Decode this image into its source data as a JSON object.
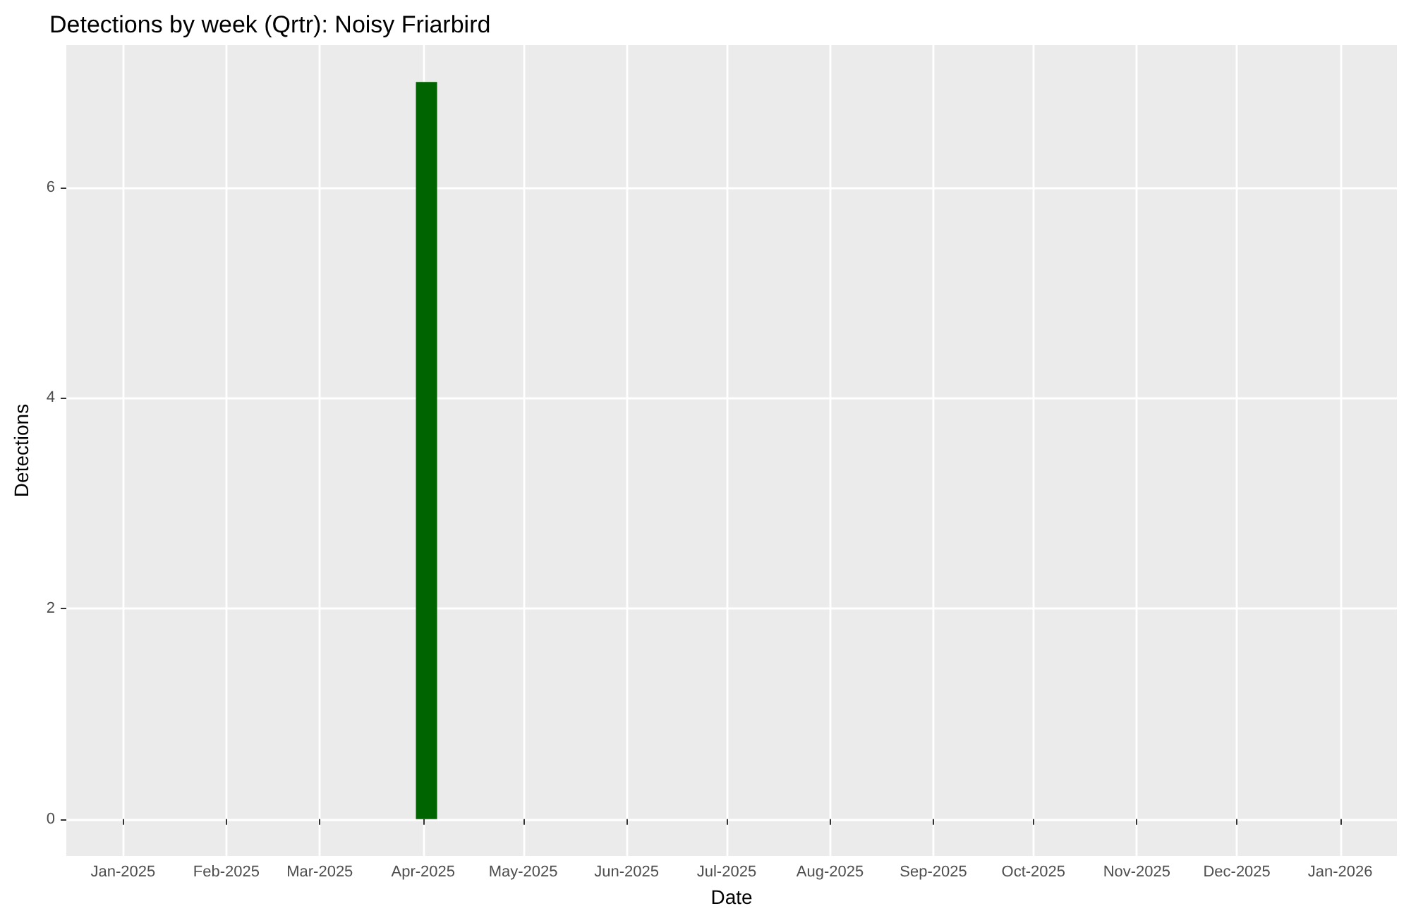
{
  "chart_data": {
    "type": "bar",
    "title": "Detections by week (Qrtr): Noisy Friarbird",
    "xlabel": "Date",
    "ylabel": "Detections",
    "x": [
      "2025-04-02"
    ],
    "values": [
      7
    ],
    "color": "#006400",
    "xlim": [
      "2024-12-15",
      "2026-01-18"
    ],
    "xticks": [
      {
        "value": "2025-01-01",
        "label": "Jan-2025"
      },
      {
        "value": "2025-02-01",
        "label": "Feb-2025"
      },
      {
        "value": "2025-03-01",
        "label": "Mar-2025"
      },
      {
        "value": "2025-04-01",
        "label": "Apr-2025"
      },
      {
        "value": "2025-05-01",
        "label": "May-2025"
      },
      {
        "value": "2025-06-01",
        "label": "Jun-2025"
      },
      {
        "value": "2025-07-01",
        "label": "Jul-2025"
      },
      {
        "value": "2025-08-01",
        "label": "Aug-2025"
      },
      {
        "value": "2025-09-01",
        "label": "Sep-2025"
      },
      {
        "value": "2025-10-01",
        "label": "Oct-2025"
      },
      {
        "value": "2025-11-01",
        "label": "Nov-2025"
      },
      {
        "value": "2025-12-01",
        "label": "Dec-2025"
      },
      {
        "value": "2026-01-01",
        "label": "Jan-2026"
      }
    ],
    "ylim": [
      -0.35,
      7.35
    ],
    "yticks": [
      0,
      2,
      4,
      6
    ],
    "grid": true
  }
}
